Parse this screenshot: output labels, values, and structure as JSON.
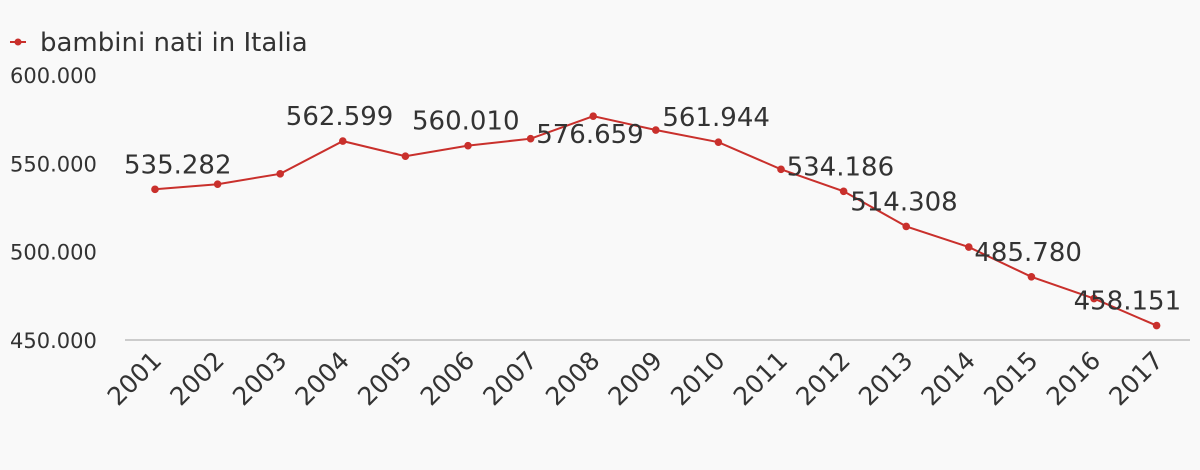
{
  "chart_data": {
    "type": "line",
    "title": "",
    "xlabel": "",
    "ylabel": "",
    "ylim": [
      450000,
      600000
    ],
    "y_ticks": [
      450000,
      500000,
      550000,
      600000
    ],
    "y_tick_labels": [
      "450.000",
      "500.000",
      "550.000",
      "600.000"
    ],
    "grid": false,
    "legend_position": "top-left",
    "series_color": "#c9302c",
    "baseline_color": "#cccccc",
    "categories": [
      "2001",
      "2002",
      "2003",
      "2004",
      "2005",
      "2006",
      "2007",
      "2008",
      "2009",
      "2010",
      "2011",
      "2012",
      "2013",
      "2014",
      "2015",
      "2016",
      "2017"
    ],
    "series": [
      {
        "name": "bambini nati in Italia",
        "values": [
          535282,
          538198,
          544063,
          562599,
          554022,
          560010,
          563933,
          576659,
          568857,
          561944,
          546607,
          534186,
          514308,
          502596,
          485780,
          473438,
          458151
        ]
      }
    ],
    "data_labels": [
      {
        "category": "2001",
        "text": "535.282"
      },
      {
        "category": "2004",
        "text": "562.599"
      },
      {
        "category": "2006",
        "text": "560.010"
      },
      {
        "category": "2008",
        "text": "576.659"
      },
      {
        "category": "2010",
        "text": "561.944"
      },
      {
        "category": "2012",
        "text": "534.186"
      },
      {
        "category": "2013",
        "text": "514.308"
      },
      {
        "category": "2015",
        "text": "485.780"
      },
      {
        "category": "2017",
        "text": "458.151"
      }
    ]
  }
}
